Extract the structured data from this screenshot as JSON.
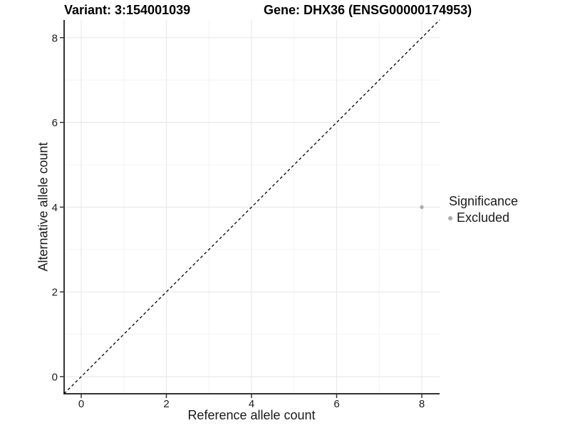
{
  "chart_data": {
    "type": "scatter",
    "title_left": "Variant: 3:154001039",
    "title_right": "Gene: DHX36 (ENSG00000174953)",
    "xlabel": "Reference allele count",
    "ylabel": "Alternative allele count",
    "xlim": [
      -0.42,
      8.42
    ],
    "ylim": [
      -0.42,
      8.42
    ],
    "x_ticks": [
      0,
      2,
      4,
      6,
      8
    ],
    "y_ticks": [
      0,
      2,
      4,
      6,
      8
    ],
    "x_minor_ticks": [
      1,
      3,
      5,
      7
    ],
    "y_minor_ticks": [
      1,
      3,
      5,
      7
    ],
    "grid": "major+minor",
    "series": [
      {
        "name": "Excluded",
        "color": "#aaaaaa",
        "point_radius": 2.6,
        "points": [
          {
            "x": 8,
            "y": 4
          }
        ]
      }
    ],
    "reference_line": {
      "kind": "identity y=x",
      "style": "dashed",
      "color": "#000000"
    },
    "legend": {
      "title": "Significance",
      "position": "right",
      "entries": [
        {
          "label": "Excluded",
          "color": "#aaaaaa"
        }
      ]
    }
  },
  "colors": {
    "background": "#ffffff",
    "grid_major": "#e9e9e9",
    "grid_minor": "#f4f4f4",
    "axis_line": "#333333",
    "tick_text": "#1a1a1a"
  }
}
